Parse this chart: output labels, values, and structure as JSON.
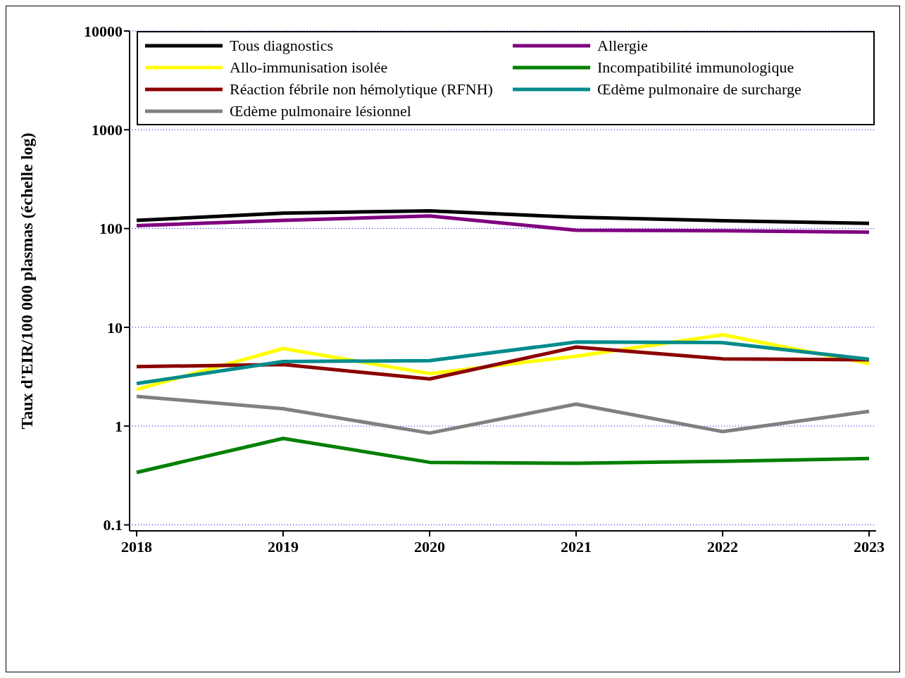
{
  "chart_data": {
    "type": "line",
    "ylabel": "Taux d'EIR/100 000 plasmas (échelle log)",
    "x": [
      2018,
      2019,
      2020,
      2021,
      2022,
      2023
    ],
    "xlim": [
      2017.952,
      2023.048
    ],
    "xticks": [
      2018,
      2019,
      2020,
      2021,
      2022,
      2023
    ],
    "ylim": [
      0.087,
      10000
    ],
    "yticks": [
      0.1,
      1,
      10,
      100,
      1000,
      10000
    ],
    "log": true,
    "grid": "y",
    "legend": "top",
    "marker": "none",
    "line_style": "solid",
    "series": [
      {
        "name": "Tous diagnostics",
        "color": "#000000",
        "values": [
          121,
          143,
          151,
          130,
          120,
          113
        ]
      },
      {
        "name": "Allergie",
        "color": "#800080",
        "values": [
          107,
          121,
          134,
          96,
          95,
          92
        ]
      },
      {
        "name": "Allo-immunisation isolée",
        "color": "#ffff00",
        "values": [
          2.35,
          6.1,
          3.4,
          5.1,
          8.4,
          4.3
        ]
      },
      {
        "name": "Incompatibilité immunologique",
        "color": "#008000",
        "values": [
          0.34,
          0.75,
          0.43,
          0.42,
          0.44,
          0.47
        ]
      },
      {
        "name": "Réaction fébrile non hémolytique (RFNH)",
        "color": "#8b0000",
        "values": [
          4.0,
          4.2,
          3.0,
          6.3,
          4.8,
          4.7
        ]
      },
      {
        "name": "Œdème pulmonaire de surcharge",
        "color": "#008b8b",
        "values": [
          2.7,
          4.5,
          4.6,
          7.1,
          7.0,
          4.75
        ]
      },
      {
        "name": "Œdème pulmonaire lésionnel",
        "color": "#808080",
        "values": [
          2.0,
          1.5,
          0.85,
          1.67,
          0.88,
          1.41
        ]
      }
    ]
  }
}
